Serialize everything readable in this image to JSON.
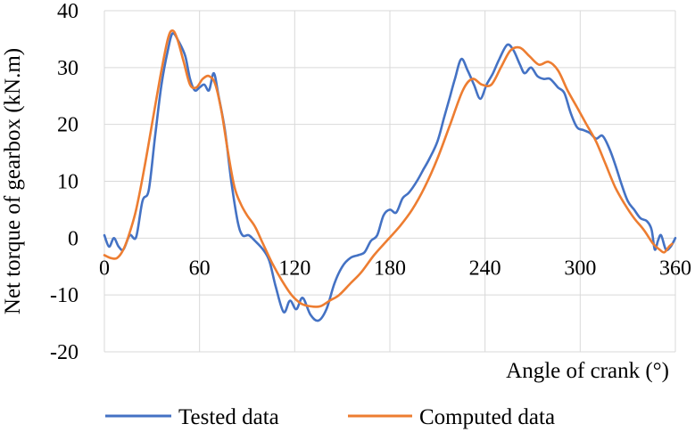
{
  "chart_data": {
    "type": "line",
    "xlabel": "Angle of crank (°)",
    "ylabel": "Net torque of gearbox (kN.m)",
    "xlim": [
      0,
      360
    ],
    "ylim": [
      -20,
      40
    ],
    "x_ticks": [
      "0",
      "60",
      "120",
      "180",
      "240",
      "300",
      "360"
    ],
    "y_ticks": [
      "40",
      "30",
      "20",
      "10",
      "0",
      "-10",
      "-20"
    ],
    "grid": true,
    "legend": "bottom",
    "series": [
      {
        "name": "Tested data",
        "color": "#4472c4",
        "points": [
          [
            0,
            0.5
          ],
          [
            3,
            -1.5
          ],
          [
            6,
            0
          ],
          [
            9,
            -1.5
          ],
          [
            12,
            -2
          ],
          [
            16,
            0.5
          ],
          [
            20,
            0.2
          ],
          [
            24,
            6.5
          ],
          [
            28,
            8.5
          ],
          [
            32,
            18
          ],
          [
            36,
            27
          ],
          [
            40,
            33
          ],
          [
            43,
            36
          ],
          [
            47,
            34.5
          ],
          [
            51,
            32
          ],
          [
            54,
            28
          ],
          [
            57,
            26
          ],
          [
            60,
            26.5
          ],
          [
            63,
            27
          ],
          [
            66,
            26
          ],
          [
            69,
            29
          ],
          [
            72,
            25
          ],
          [
            76,
            19
          ],
          [
            80,
            10
          ],
          [
            84,
            3
          ],
          [
            87,
            0.5
          ],
          [
            91,
            0.5
          ],
          [
            95,
            -0.5
          ],
          [
            100,
            -2
          ],
          [
            104,
            -4
          ],
          [
            108,
            -8.5
          ],
          [
            113,
            -13
          ],
          [
            117,
            -11
          ],
          [
            121,
            -12.5
          ],
          [
            125,
            -10.5
          ],
          [
            130,
            -13.5
          ],
          [
            135,
            -14.5
          ],
          [
            140,
            -12.5
          ],
          [
            145,
            -8
          ],
          [
            150,
            -5
          ],
          [
            155,
            -3.5
          ],
          [
            160,
            -3
          ],
          [
            164,
            -2.5
          ],
          [
            168,
            -0.5
          ],
          [
            172,
            0.5
          ],
          [
            176,
            4
          ],
          [
            180,
            5
          ],
          [
            184,
            4.5
          ],
          [
            188,
            7
          ],
          [
            192,
            8
          ],
          [
            197,
            10
          ],
          [
            201,
            12
          ],
          [
            205,
            14
          ],
          [
            210,
            17
          ],
          [
            214,
            21
          ],
          [
            218,
            25
          ],
          [
            221,
            28
          ],
          [
            225,
            31.5
          ],
          [
            229,
            29.5
          ],
          [
            233,
            27
          ],
          [
            237,
            24.5
          ],
          [
            241,
            27
          ],
          [
            245,
            29
          ],
          [
            249,
            31.5
          ],
          [
            254,
            34
          ],
          [
            258,
            33
          ],
          [
            262,
            30.5
          ],
          [
            265,
            29
          ],
          [
            269,
            30
          ],
          [
            273,
            28.5
          ],
          [
            277,
            28
          ],
          [
            281,
            28
          ],
          [
            286,
            26.5
          ],
          [
            290,
            25.5
          ],
          [
            294,
            22
          ],
          [
            298,
            19.5
          ],
          [
            302,
            19
          ],
          [
            306,
            18.5
          ],
          [
            310,
            17.5
          ],
          [
            314,
            18
          ],
          [
            318,
            16
          ],
          [
            322,
            13
          ],
          [
            326,
            9.5
          ],
          [
            330,
            6.5
          ],
          [
            334,
            5
          ],
          [
            338,
            3.5
          ],
          [
            342,
            3
          ],
          [
            345,
            1.5
          ],
          [
            347,
            -2
          ],
          [
            349,
            -0.5
          ],
          [
            351,
            0.5
          ],
          [
            354,
            -2
          ],
          [
            357,
            -1.5
          ],
          [
            360,
            0
          ]
        ]
      },
      {
        "name": "Computed data",
        "color": "#ed7d31",
        "points": [
          [
            0,
            -3
          ],
          [
            4,
            -3.5
          ],
          [
            8,
            -3.5
          ],
          [
            12,
            -2
          ],
          [
            16,
            1
          ],
          [
            20,
            5
          ],
          [
            25,
            12
          ],
          [
            30,
            20
          ],
          [
            35,
            28
          ],
          [
            40,
            35
          ],
          [
            43,
            36.5
          ],
          [
            46,
            35
          ],
          [
            50,
            31
          ],
          [
            54,
            27
          ],
          [
            58,
            26.5
          ],
          [
            62,
            28
          ],
          [
            66,
            28.5
          ],
          [
            70,
            27
          ],
          [
            74,
            22
          ],
          [
            78,
            15
          ],
          [
            82,
            9
          ],
          [
            86,
            6
          ],
          [
            90,
            4
          ],
          [
            95,
            2
          ],
          [
            100,
            -1
          ],
          [
            106,
            -4.5
          ],
          [
            112,
            -7.5
          ],
          [
            118,
            -10
          ],
          [
            124,
            -11.5
          ],
          [
            130,
            -12
          ],
          [
            136,
            -12
          ],
          [
            142,
            -11
          ],
          [
            148,
            -10
          ],
          [
            155,
            -8
          ],
          [
            162,
            -6
          ],
          [
            170,
            -3
          ],
          [
            178,
            -0.5
          ],
          [
            186,
            2
          ],
          [
            194,
            5
          ],
          [
            202,
            9
          ],
          [
            210,
            14
          ],
          [
            218,
            20
          ],
          [
            226,
            26
          ],
          [
            232,
            28
          ],
          [
            238,
            27
          ],
          [
            244,
            27
          ],
          [
            250,
            30
          ],
          [
            256,
            33
          ],
          [
            262,
            33.5
          ],
          [
            268,
            32
          ],
          [
            274,
            30.5
          ],
          [
            280,
            31
          ],
          [
            286,
            29.5
          ],
          [
            292,
            26
          ],
          [
            298,
            23
          ],
          [
            304,
            20
          ],
          [
            310,
            17
          ],
          [
            316,
            13
          ],
          [
            322,
            9
          ],
          [
            328,
            6
          ],
          [
            334,
            3.5
          ],
          [
            340,
            1.5
          ],
          [
            346,
            -1
          ],
          [
            350,
            -2
          ],
          [
            353,
            -2.5
          ],
          [
            356,
            -1.5
          ],
          [
            358,
            -1
          ]
        ]
      }
    ]
  }
}
